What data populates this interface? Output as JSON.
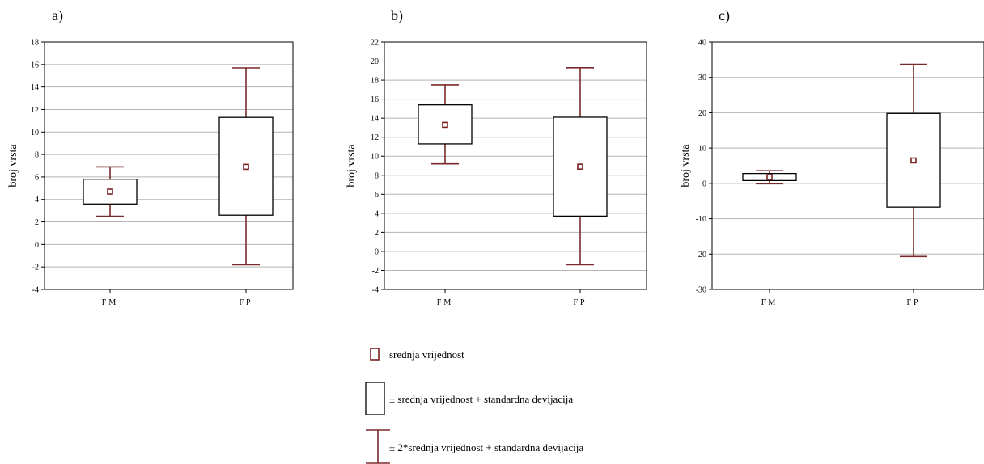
{
  "colors": {
    "mean": "#7a1f1f",
    "whisker": "#7a2a2a",
    "box": "#000000",
    "grid": "#b5b5b5",
    "frame": "#000000"
  },
  "chart_data": [
    {
      "panel_label": "a)",
      "type": "box",
      "categories": [
        "FM",
        "FP"
      ],
      "ylabel": "broj vrsta",
      "ylim": [
        -4,
        18
      ],
      "yticks": [
        -4,
        -2,
        0,
        2,
        4,
        6,
        8,
        10,
        12,
        14,
        16,
        18
      ],
      "boxes": [
        {
          "category": "FM",
          "mean": 4.7,
          "box_low": 3.6,
          "box_high": 5.8,
          "whisker_low": 2.5,
          "whisker_high": 6.9
        },
        {
          "category": "FP",
          "mean": 6.9,
          "box_low": 2.6,
          "box_high": 11.3,
          "whisker_low": -1.8,
          "whisker_high": 15.7
        }
      ]
    },
    {
      "panel_label": "b)",
      "type": "box",
      "categories": [
        "FM",
        "FP"
      ],
      "ylabel": "broj vrsta",
      "ylim": [
        -4,
        22
      ],
      "yticks": [
        -4,
        -2,
        0,
        2,
        4,
        6,
        8,
        10,
        12,
        14,
        16,
        18,
        20,
        22
      ],
      "boxes": [
        {
          "category": "FM",
          "mean": 13.3,
          "box_low": 11.3,
          "box_high": 15.4,
          "whisker_low": 9.2,
          "whisker_high": 17.5
        },
        {
          "category": "FP",
          "mean": 8.9,
          "box_low": 3.7,
          "box_high": 14.1,
          "whisker_low": -1.4,
          "whisker_high": 19.3
        }
      ]
    },
    {
      "panel_label": "c)",
      "type": "box",
      "categories": [
        "FM",
        "FP"
      ],
      "ylabel": "broj vrsta",
      "ylim": [
        -30,
        40
      ],
      "yticks": [
        -30,
        -20,
        -10,
        0,
        10,
        20,
        30,
        40
      ],
      "boxes": [
        {
          "category": "FM",
          "mean": 1.8,
          "box_low": 0.8,
          "box_high": 2.8,
          "whisker_low": -0.1,
          "whisker_high": 3.6
        },
        {
          "category": "FP",
          "mean": 6.5,
          "box_low": -6.7,
          "box_high": 19.8,
          "whisker_low": -20.7,
          "whisker_high": 33.7
        }
      ]
    }
  ],
  "legend": [
    {
      "key": "mean",
      "text": "srednja vrijednost"
    },
    {
      "key": "box",
      "text": "± srednja vrijednost + standardna devijacija"
    },
    {
      "key": "whisker",
      "text": "± 2*srednja vrijednost + standardna devijacija"
    }
  ]
}
